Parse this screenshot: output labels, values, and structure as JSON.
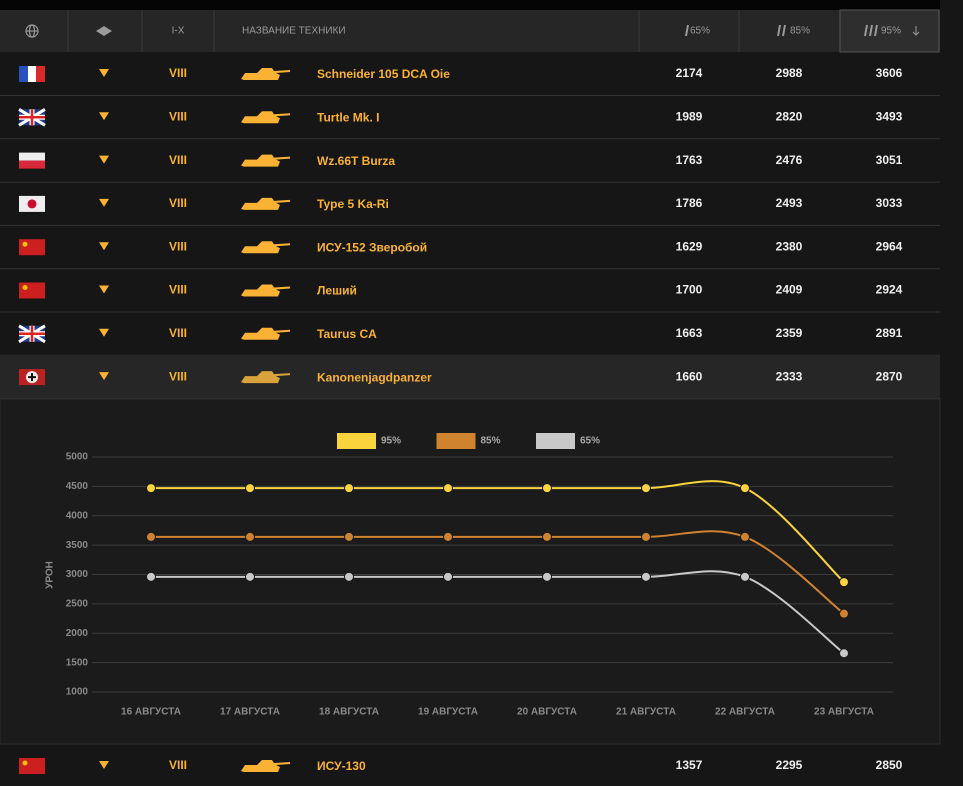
{
  "header": {
    "columns": [
      "I-X",
      "НАЗВАНИЕ ТЕХНИКИ",
      "65%",
      "85%",
      "95%"
    ]
  },
  "table": {
    "rows": [
      [
        "VIII",
        "Schneider 105 DCA Oie",
        2174,
        2988,
        3606
      ],
      [
        "VIII",
        "Turtle Mk. I",
        1989,
        2820,
        3493
      ],
      [
        "VIII",
        "Wz.66T Burza",
        1763,
        2476,
        3051
      ],
      [
        "VIII",
        "Type 5 Ka-Ri",
        1786,
        2493,
        3033
      ],
      [
        "VIII",
        "ИСУ-152 Зверобой",
        1629,
        2380,
        2964
      ],
      [
        "VIII",
        "Леший",
        1700,
        2409,
        2924
      ],
      [
        "VIII",
        "Taurus CA",
        1663,
        2359,
        2891
      ],
      [
        "VIII",
        "Kanonenjagdpanzer",
        1660,
        2333,
        2870
      ],
      [
        "VIII",
        "ИСУ-130",
        1357,
        2295,
        2850
      ]
    ]
  },
  "chart_data": {
    "type": "line",
    "y_label": "УРОН",
    "categories": [
      "16 АВГУСТА",
      "17 АВГУСТА",
      "18 АВГУСТА",
      "19 АВГУСТА",
      "20 АВГУСТА",
      "21 АВГУСТА",
      "22 АВГУСТА",
      "23 АВГУСТА"
    ],
    "series": [
      {
        "name": "95%",
        "color": "#f9d43c",
        "values": [
          4470,
          4470,
          4470,
          4470,
          4470,
          4470,
          4470,
          2870
        ]
      },
      {
        "name": "85%",
        "color": "#d0832f",
        "values": [
          3640,
          3640,
          3640,
          3640,
          3640,
          3640,
          3640,
          2333
        ]
      },
      {
        "name": "65%",
        "color": "#c8c8c8",
        "values": [
          2960,
          2960,
          2960,
          2960,
          2960,
          2960,
          2960,
          1660
        ]
      }
    ],
    "ylim": [
      1000,
      5000
    ],
    "yticks": [
      1000,
      1500,
      2000,
      2500,
      3000,
      3500,
      4000,
      4500,
      5000
    ],
    "grid": true
  }
}
